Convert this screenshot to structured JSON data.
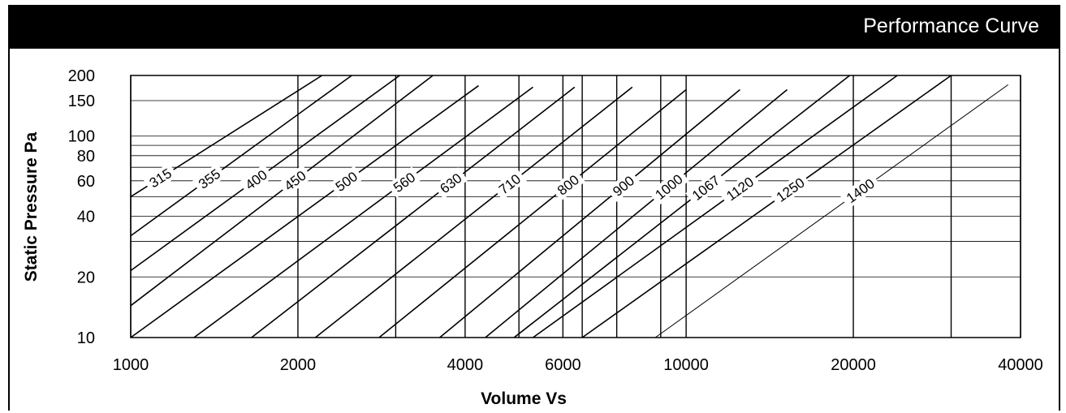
{
  "chart_data": {
    "type": "line",
    "title": "Performance Curve",
    "xlabel": "Volume Vs",
    "ylabel": "Static Pressure Pa",
    "x_scale": "log",
    "y_scale": "log",
    "xlim": [
      1000,
      40000
    ],
    "ylim": [
      10,
      200
    ],
    "x_ticks": [
      1000,
      2000,
      4000,
      6000,
      10000,
      20000,
      40000
    ],
    "x_tick_labels": [
      "1000",
      "2000",
      "4000",
      "6000",
      "10000",
      "20000",
      "40000"
    ],
    "y_ticks": [
      10,
      20,
      40,
      60,
      80,
      100,
      150,
      200
    ],
    "y_tick_labels": [
      "10",
      "20",
      "40",
      "60",
      "80",
      "100",
      "150",
      "200"
    ],
    "y_gridlines": [
      10,
      20,
      30,
      40,
      50,
      60,
      70,
      80,
      90,
      100,
      150,
      200
    ],
    "x_gridlines": [
      1000,
      2000,
      3000,
      4000,
      5000,
      6000,
      6500,
      7500,
      9000,
      10000,
      20000,
      30000,
      40000
    ],
    "grid": true,
    "series": [
      {
        "name": "315",
        "x": [
          1000,
          2210
        ],
        "y": [
          50,
          200
        ]
      },
      {
        "name": "355",
        "x": [
          1000,
          2500
        ],
        "y": [
          32,
          200
        ]
      },
      {
        "name": "400",
        "x": [
          1000,
          3050
        ],
        "y": [
          21.5,
          200
        ]
      },
      {
        "name": "450",
        "x": [
          1000,
          3500
        ],
        "y": [
          14.4,
          200
        ]
      },
      {
        "name": "500",
        "x": [
          1000,
          4230
        ],
        "y": [
          10,
          178
        ]
      },
      {
        "name": "560",
        "x": [
          1300,
          5300
        ],
        "y": [
          10,
          175
        ]
      },
      {
        "name": "630",
        "x": [
          1650,
          6300
        ],
        "y": [
          10,
          175
        ]
      },
      {
        "name": "710",
        "x": [
          2150,
          8000
        ],
        "y": [
          10,
          175
        ]
      },
      {
        "name": "800",
        "x": [
          2800,
          10000
        ],
        "y": [
          10,
          170
        ]
      },
      {
        "name": "900",
        "x": [
          3600,
          12500
        ],
        "y": [
          10,
          170
        ]
      },
      {
        "name": "1000",
        "x": [
          4350,
          15200
        ],
        "y": [
          10,
          170
        ]
      },
      {
        "name": "1067",
        "x": [
          4900,
          19700
        ],
        "y": [
          10,
          200
        ]
      },
      {
        "name": "1120",
        "x": [
          5300,
          24000
        ],
        "y": [
          10,
          200
        ]
      },
      {
        "name": "1250",
        "x": [
          6500,
          30000
        ],
        "y": [
          10,
          200
        ]
      },
      {
        "name": "1400",
        "x": [
          8800,
          38000
        ],
        "y": [
          10,
          180
        ]
      }
    ]
  }
}
